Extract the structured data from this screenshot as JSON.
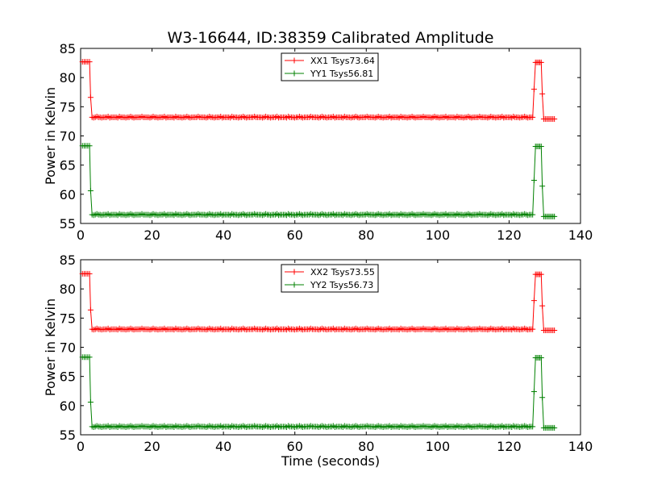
{
  "figure": {
    "title": "W3-16644, ID:38359 Calibrated Amplitude",
    "xlabel": "Time (seconds)"
  },
  "colors": {
    "xx": "#ff0000",
    "yy": "#008000"
  },
  "chart_data": [
    {
      "type": "line",
      "ylabel": "Power in Kelvin",
      "xlim": [
        0,
        140
      ],
      "ylim": [
        55,
        85
      ],
      "xticks": [
        "0",
        "20",
        "40",
        "60",
        "80",
        "100",
        "120",
        "140"
      ],
      "yticks": [
        "55",
        "60",
        "65",
        "70",
        "75",
        "80",
        "85"
      ],
      "grid": false,
      "legend_position": "top-center",
      "series": [
        {
          "name": "XX1 Tsys73.64",
          "color": "#ff0000",
          "marker": "+",
          "segments": [
            {
              "x_start": 0.5,
              "x_end": 2.5,
              "value": 82.7
            },
            {
              "x_start": 2.8,
              "x_end": 2.8,
              "value": 76.6
            },
            {
              "x_start": 3.2,
              "x_end": 126.6,
              "value": 73.2
            },
            {
              "x_start": 127.0,
              "x_end": 127.0,
              "value": 78.0
            },
            {
              "x_start": 127.4,
              "x_end": 129.0,
              "value": 82.6
            },
            {
              "x_start": 129.3,
              "x_end": 129.3,
              "value": 77.2
            },
            {
              "x_start": 129.7,
              "x_end": 132.7,
              "value": 72.9
            }
          ]
        },
        {
          "name": "YY1 Tsys56.81",
          "color": "#008000",
          "marker": "+",
          "segments": [
            {
              "x_start": 0.5,
              "x_end": 2.5,
              "value": 68.3
            },
            {
              "x_start": 2.8,
              "x_end": 2.8,
              "value": 60.6
            },
            {
              "x_start": 3.2,
              "x_end": 126.6,
              "value": 56.5
            },
            {
              "x_start": 127.0,
              "x_end": 127.0,
              "value": 62.4
            },
            {
              "x_start": 127.4,
              "x_end": 129.0,
              "value": 68.2
            },
            {
              "x_start": 129.3,
              "x_end": 129.3,
              "value": 61.4
            },
            {
              "x_start": 129.7,
              "x_end": 132.7,
              "value": 56.2
            }
          ]
        }
      ]
    },
    {
      "type": "line",
      "ylabel": "Power in Kelvin",
      "xlabel": "Time (seconds)",
      "xlim": [
        0,
        140
      ],
      "ylim": [
        55,
        85
      ],
      "xticks": [
        "0",
        "20",
        "40",
        "60",
        "80",
        "100",
        "120",
        "140"
      ],
      "yticks": [
        "55",
        "60",
        "65",
        "70",
        "75",
        "80",
        "85"
      ],
      "grid": false,
      "legend_position": "top-center",
      "series": [
        {
          "name": "XX2 Tsys73.55",
          "color": "#ff0000",
          "marker": "+",
          "segments": [
            {
              "x_start": 0.5,
              "x_end": 2.5,
              "value": 82.6
            },
            {
              "x_start": 2.8,
              "x_end": 2.8,
              "value": 76.4
            },
            {
              "x_start": 3.2,
              "x_end": 126.6,
              "value": 73.1
            },
            {
              "x_start": 127.0,
              "x_end": 127.0,
              "value": 78.0
            },
            {
              "x_start": 127.4,
              "x_end": 129.0,
              "value": 82.5
            },
            {
              "x_start": 129.3,
              "x_end": 129.3,
              "value": 77.1
            },
            {
              "x_start": 129.7,
              "x_end": 132.7,
              "value": 72.9
            }
          ]
        },
        {
          "name": "YY2 Tsys56.73",
          "color": "#008000",
          "marker": "+",
          "segments": [
            {
              "x_start": 0.5,
              "x_end": 2.5,
              "value": 68.3
            },
            {
              "x_start": 2.8,
              "x_end": 2.8,
              "value": 60.6
            },
            {
              "x_start": 3.2,
              "x_end": 126.6,
              "value": 56.4
            },
            {
              "x_start": 127.0,
              "x_end": 127.0,
              "value": 62.4
            },
            {
              "x_start": 127.4,
              "x_end": 129.0,
              "value": 68.2
            },
            {
              "x_start": 129.3,
              "x_end": 129.3,
              "value": 61.4
            },
            {
              "x_start": 129.7,
              "x_end": 132.7,
              "value": 56.2
            }
          ]
        }
      ]
    }
  ]
}
